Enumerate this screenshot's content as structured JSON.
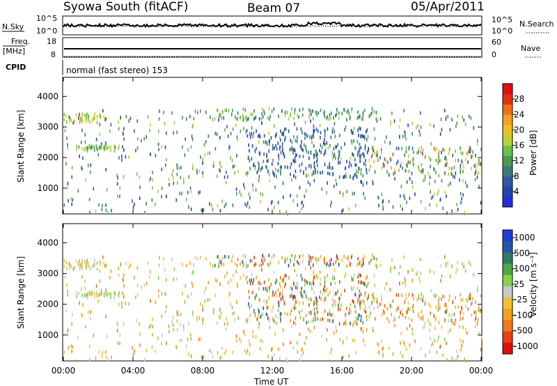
{
  "header": {
    "station_title": "Syowa South (fitACF)",
    "beam": "Beam 07",
    "date": "05/Apr/2011"
  },
  "strip_panels": {
    "sky_label": "N.Sky",
    "search_label": "N.Search",
    "noise_ticks_left": [
      "10^5",
      "10^0"
    ],
    "noise_ticks_right": [
      "10^5",
      "10^0"
    ],
    "freq_label_top": "Freq.",
    "freq_label_bottom": "[MHz]",
    "freq_ticks": [
      "18",
      "8"
    ],
    "nave_label": "Nave",
    "nave_ticks": [
      "60",
      "0"
    ],
    "cpid_label": "CPID",
    "cpid_text": "normal (fast stereo) 153"
  },
  "colors": {
    "power_scale": [
      "#1f2fe0",
      "#2244aa",
      "#2e5a9e",
      "#3c7a78",
      "#4a9a55",
      "#6cc24a",
      "#b6d23a",
      "#f0c020",
      "#f5a020",
      "#f07018",
      "#e83010",
      "#e01010"
    ],
    "velocity_scale": [
      "#1e3fd8",
      "#2557a8",
      "#2f7a6a",
      "#4caa40",
      "#86d24a",
      "#c8c8c8",
      "#f0c030",
      "#f0a020",
      "#f07a18",
      "#e84010",
      "#e01010"
    ],
    "axes": "#000000"
  },
  "chart_data": [
    {
      "type": "line",
      "name": "noise",
      "x_range_hours": [
        0,
        24
      ],
      "y_scale": "log",
      "ylim": [
        1,
        100000
      ],
      "series": [
        {
          "name": "N.Sky",
          "style": "solid",
          "level_log10": 2.5
        },
        {
          "name": "N.Search",
          "style": "dotted",
          "level_log10": 2.3
        }
      ]
    },
    {
      "type": "line",
      "name": "frequency",
      "ylabel": "Freq. [MHz]",
      "ylim": [
        8,
        18
      ],
      "series": [
        {
          "name": "Freq.",
          "style": "solid",
          "value": 12
        },
        {
          "name": "Nave",
          "style": "dotted",
          "value": 0
        }
      ]
    },
    {
      "type": "scatter",
      "name": "power",
      "title": "",
      "xlabel": "",
      "ylabel": "Slant Range [km]",
      "xlim_hours": [
        0,
        24
      ],
      "ylim": [
        180,
        4600
      ],
      "yticks": [
        "1000",
        "2000",
        "3000",
        "4000"
      ],
      "colorbar_label": "Power [dB]",
      "colorbar_ticks": [
        "4",
        "8",
        "12",
        "16",
        "20",
        "24",
        "28"
      ],
      "colorbar_range": [
        0,
        32
      ],
      "clusters": [
        {
          "t": [
            0.0,
            2.5
          ],
          "r": [
            3200,
            3500
          ],
          "n": 45,
          "v": [
            14,
            22
          ]
        },
        {
          "t": [
            0.5,
            3.2
          ],
          "r": [
            2300,
            2450
          ],
          "n": 40,
          "v": [
            12,
            18
          ]
        },
        {
          "t": [
            0.0,
            24.0
          ],
          "r": [
            200,
            3600
          ],
          "n": 620,
          "v": [
            3,
            18
          ]
        },
        {
          "t": [
            8.5,
            18.0
          ],
          "r": [
            3300,
            3650
          ],
          "n": 110,
          "v": [
            8,
            18
          ]
        },
        {
          "t": [
            10.5,
            17.5
          ],
          "r": [
            1400,
            3000
          ],
          "n": 260,
          "v": [
            2,
            12
          ]
        },
        {
          "t": [
            17.5,
            24.0
          ],
          "r": [
            1500,
            2400
          ],
          "n": 120,
          "v": [
            6,
            26
          ]
        }
      ]
    },
    {
      "type": "scatter",
      "name": "velocity",
      "title": "",
      "xlabel": "Time UT",
      "ylabel": "Slant Range [km]",
      "xlim_hours": [
        0,
        24
      ],
      "ylim": [
        180,
        4600
      ],
      "xticks": [
        "00:00",
        "04:00",
        "08:00",
        "12:00",
        "16:00",
        "20:00",
        "00:00"
      ],
      "yticks": [
        "1000",
        "2000",
        "3000",
        "4000"
      ],
      "colorbar_label": "Velocity [m s⁻¹]",
      "colorbar_ticks": [
        "1000",
        "500",
        "100",
        "25",
        "-25",
        "-100",
        "-500",
        "-1000"
      ],
      "colorbar_range": [
        -1200,
        1200
      ],
      "clusters": [
        {
          "t": [
            0.0,
            2.5
          ],
          "r": [
            3200,
            3500
          ],
          "n": 45,
          "v": [
            -300,
            200
          ]
        },
        {
          "t": [
            0.5,
            3.2
          ],
          "r": [
            2300,
            2450
          ],
          "n": 40,
          "v": [
            -200,
            300
          ]
        },
        {
          "t": [
            0.0,
            24.0
          ],
          "r": [
            200,
            3600
          ],
          "n": 620,
          "v": [
            -700,
            300
          ]
        },
        {
          "t": [
            8.5,
            18.0
          ],
          "r": [
            3300,
            3650
          ],
          "n": 110,
          "v": [
            -1100,
            1100
          ]
        },
        {
          "t": [
            10.5,
            17.5
          ],
          "r": [
            1400,
            3000
          ],
          "n": 260,
          "v": [
            -1100,
            1100
          ]
        },
        {
          "t": [
            17.5,
            24.0
          ],
          "r": [
            1500,
            2400
          ],
          "n": 120,
          "v": [
            -900,
            400
          ]
        }
      ]
    }
  ]
}
